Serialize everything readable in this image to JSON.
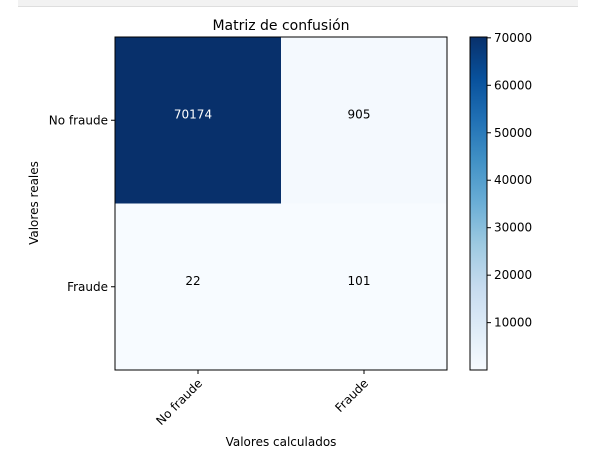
{
  "chart_data": {
    "type": "heatmap",
    "title": "Matriz de confusión",
    "xlabel": "Valores calculados",
    "ylabel": "Valores reales",
    "x_categories": [
      "No fraude",
      "Fraude"
    ],
    "y_categories": [
      "No fraude",
      "Fraude"
    ],
    "values": [
      [
        70174,
        905
      ],
      [
        22,
        101
      ]
    ],
    "colormap": "Blues",
    "colorbar": {
      "range": [
        22,
        70174
      ],
      "ticks": [
        10000,
        20000,
        30000,
        40000,
        50000,
        60000,
        70000
      ]
    },
    "colors": {
      "low": "#f7fbff",
      "high": "#08306b"
    }
  }
}
